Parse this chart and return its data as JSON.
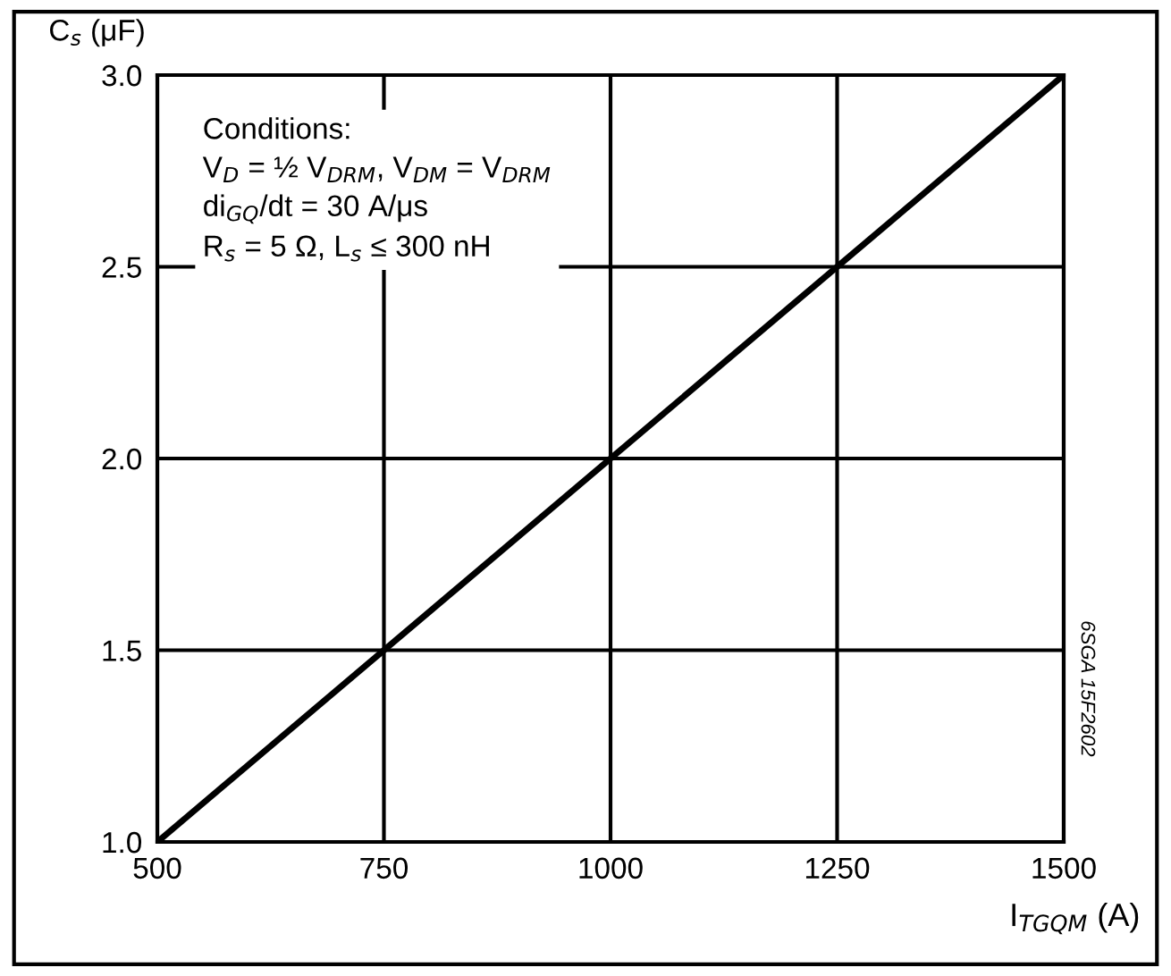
{
  "chart_data": {
    "type": "line",
    "xlabel": "I$_{TGQM}$ (A)",
    "ylabel": "C$_{s}$ (μF)",
    "x": [
      500,
      1500
    ],
    "series": [
      {
        "color": "#000000",
        "values": [
          1.0,
          3.0
        ]
      }
    ],
    "xlim": [
      500,
      1500
    ],
    "xticks": [
      500,
      750,
      1000,
      1250,
      1500
    ],
    "ylim": [
      1.0,
      3.0
    ],
    "yticks": [
      {
        "value": 1.0,
        "label": "1.0"
      },
      {
        "value": 1.5,
        "label": "1.5"
      },
      {
        "value": 2.0,
        "label": "2.0"
      },
      {
        "value": 2.5,
        "label": "2.5"
      },
      {
        "value": 3.0,
        "label": "3.0"
      }
    ],
    "grid": true,
    "marker": "none",
    "line_style": "solid",
    "annotations": [
      "Conditions:\nV$_{D}$ = ½ V$_{DRM}$, V$_{DM}$ = V$_{DRM}$\ndi$_{GQ}$/dt = 30 A/μs\nR$_{s}$ = 5 Ω, L$_{s}$ ≤ 300 nH",
      "6SGA 15F2602"
    ]
  }
}
